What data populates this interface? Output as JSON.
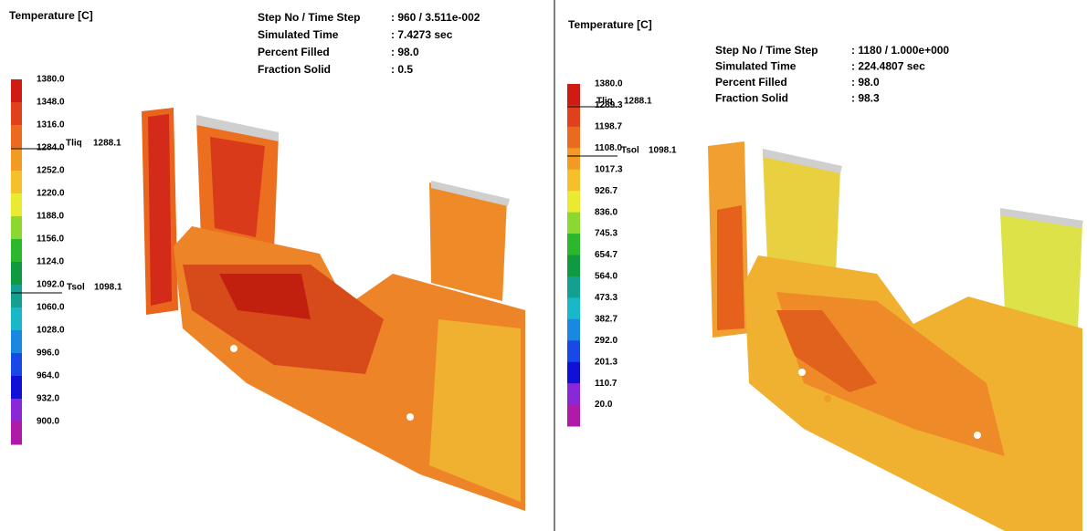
{
  "panels": [
    {
      "title": "Temperature [C]",
      "info": [
        {
          "label": "Step No / Time Step",
          "value": ": 960 / 3.511e-002"
        },
        {
          "label": "Simulated Time",
          "value": ": 7.4273 sec"
        },
        {
          "label": "Percent Filled",
          "value": ": 98.0"
        },
        {
          "label": "Fraction Solid",
          "value": ": 0.5"
        }
      ],
      "legend": [
        "1380.0",
        "1348.0",
        "1316.0",
        "1284.0",
        "1252.0",
        "1220.0",
        "1188.0",
        "1156.0",
        "1124.0",
        "1092.0",
        "1060.0",
        "1028.0",
        "996.0",
        "964.0",
        "932.0",
        "900.0"
      ],
      "tliq": {
        "label": "Tliq",
        "value": "1288.1"
      },
      "tsol": {
        "label": "Tsol",
        "value": "1098.1"
      }
    },
    {
      "title": "Temperature [C]",
      "info": [
        {
          "label": "Step No / Time Step",
          "value": ": 1180 / 1.000e+000"
        },
        {
          "label": "Simulated Time",
          "value": ": 224.4807 sec"
        },
        {
          "label": "Percent Filled",
          "value": ": 98.0"
        },
        {
          "label": "Fraction Solid",
          "value": ": 98.3"
        }
      ],
      "legend": [
        "1380.0",
        "1289.3",
        "1198.7",
        "1108.0",
        "1017.3",
        "926.7",
        "836.0",
        "745.3",
        "654.7",
        "564.0",
        "473.3",
        "382.7",
        "292.0",
        "201.3",
        "110.7",
        "20.0"
      ],
      "tliq": {
        "label": "Tliq",
        "value": "1288.1"
      },
      "tsol": {
        "label": "Tsol",
        "value": "1098.1"
      }
    }
  ]
}
